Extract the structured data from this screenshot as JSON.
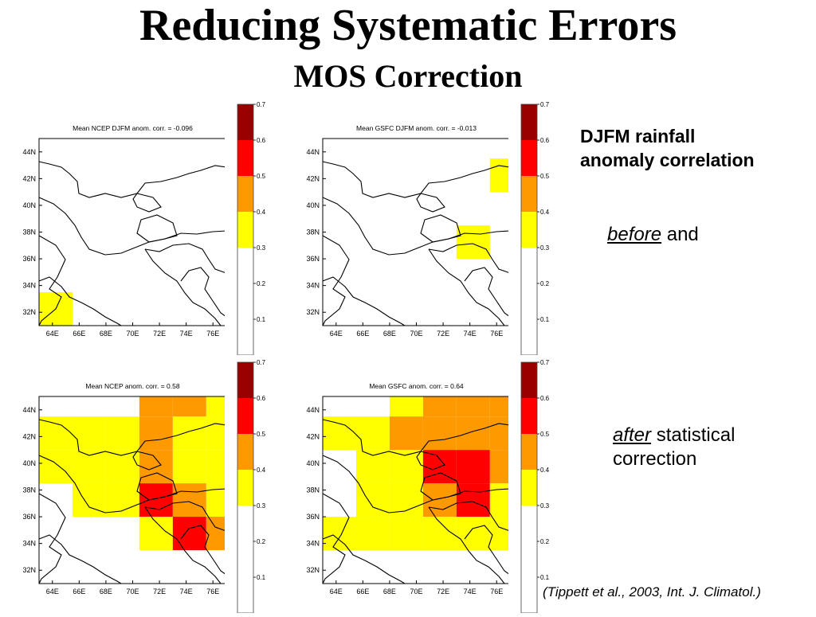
{
  "slide": {
    "title": "Reducing Systematic Errors",
    "subtitle": "MOS Correction",
    "side_heading_line1": "DJFM rainfall",
    "side_heading_line2": "anomaly correlation",
    "before_word": "before",
    "before_rest": " and",
    "after_word": "after",
    "after_rest": " statistical",
    "after_line2": "correction",
    "citation": "(Tippett et al., 2003, Int. J. Climatol.)"
  },
  "chart_data": [
    {
      "type": "heatmap",
      "title": "Mean NCEP DJFM anom. corr. = -0.096",
      "xlabels": [
        "64E",
        "66E",
        "68E",
        "70E",
        "72E",
        "74E",
        "76E"
      ],
      "ylabels": [
        "44N",
        "42N",
        "40N",
        "38N",
        "36N",
        "34N",
        "32N"
      ],
      "grid_origin": {
        "lon": 63,
        "lat": 31
      },
      "grid_step_deg": 2.5,
      "cells": [
        {
          "lon": 63,
          "lat": 31,
          "v": 0.35
        }
      ]
    },
    {
      "type": "heatmap",
      "title": "Mean GSFC DJFM anom. corr. = -0.013",
      "xlabels": [
        "64E",
        "66E",
        "68E",
        "70E",
        "72E",
        "74E",
        "76E"
      ],
      "ylabels": [
        "44N",
        "42N",
        "40N",
        "38N",
        "36N",
        "34N",
        "32N"
      ],
      "grid_origin": {
        "lon": 63,
        "lat": 31
      },
      "grid_step_deg": 2.5,
      "cells": [
        {
          "lon": 75.5,
          "lat": 41,
          "v": 0.35
        },
        {
          "lon": 73,
          "lat": 36,
          "v": 0.35
        }
      ]
    },
    {
      "type": "heatmap",
      "title": "Mean NCEP anom. corr. = 0.58",
      "xlabels": [
        "64E",
        "66E",
        "68E",
        "70E",
        "72E",
        "74E",
        "76E"
      ],
      "ylabels": [
        "44N",
        "42N",
        "40N",
        "38N",
        "36N",
        "34N",
        "32N"
      ],
      "grid_origin": {
        "lon": 63,
        "lat": 31
      },
      "grid_step_deg": 2.5,
      "cells": [
        {
          "lon": 70.5,
          "lat": 43.5,
          "v": 0.45
        },
        {
          "lon": 73,
          "lat": 43.5,
          "v": 0.45
        },
        {
          "lon": 75.5,
          "lat": 43.5,
          "v": 0.35
        },
        {
          "lon": 63,
          "lat": 41,
          "v": 0.35
        },
        {
          "lon": 65.5,
          "lat": 41,
          "v": 0.35
        },
        {
          "lon": 68,
          "lat": 41,
          "v": 0.35
        },
        {
          "lon": 70.5,
          "lat": 41,
          "v": 0.45
        },
        {
          "lon": 73,
          "lat": 41,
          "v": 0.35
        },
        {
          "lon": 75.5,
          "lat": 41,
          "v": 0.35
        },
        {
          "lon": 63,
          "lat": 38.5,
          "v": 0.35
        },
        {
          "lon": 65.5,
          "lat": 38.5,
          "v": 0.35
        },
        {
          "lon": 68,
          "lat": 38.5,
          "v": 0.35
        },
        {
          "lon": 70.5,
          "lat": 38.5,
          "v": 0.45
        },
        {
          "lon": 73,
          "lat": 38.5,
          "v": 0.35
        },
        {
          "lon": 75.5,
          "lat": 38.5,
          "v": 0.35
        },
        {
          "lon": 65.5,
          "lat": 36,
          "v": 0.35
        },
        {
          "lon": 68,
          "lat": 36,
          "v": 0.35
        },
        {
          "lon": 70.5,
          "lat": 36,
          "v": 0.55
        },
        {
          "lon": 73,
          "lat": 36,
          "v": 0.45
        },
        {
          "lon": 75.5,
          "lat": 36,
          "v": 0.35
        },
        {
          "lon": 70.5,
          "lat": 33.5,
          "v": 0.35
        },
        {
          "lon": 73,
          "lat": 33.5,
          "v": 0.55
        },
        {
          "lon": 75.5,
          "lat": 33.5,
          "v": 0.45
        }
      ]
    },
    {
      "type": "heatmap",
      "title": "Mean GSFC anom. corr. = 0.64",
      "xlabels": [
        "64E",
        "66E",
        "68E",
        "70E",
        "72E",
        "74E",
        "76E"
      ],
      "ylabels": [
        "44N",
        "42N",
        "40N",
        "38N",
        "36N",
        "34N",
        "32N"
      ],
      "grid_origin": {
        "lon": 63,
        "lat": 31
      },
      "grid_step_deg": 2.5,
      "cells": [
        {
          "lon": 68,
          "lat": 43.5,
          "v": 0.35
        },
        {
          "lon": 70.5,
          "lat": 43.5,
          "v": 0.45
        },
        {
          "lon": 73,
          "lat": 43.5,
          "v": 0.45
        },
        {
          "lon": 75.5,
          "lat": 43.5,
          "v": 0.45
        },
        {
          "lon": 63,
          "lat": 41,
          "v": 0.35
        },
        {
          "lon": 65.5,
          "lat": 41,
          "v": 0.35
        },
        {
          "lon": 68,
          "lat": 41,
          "v": 0.45
        },
        {
          "lon": 70.5,
          "lat": 41,
          "v": 0.45
        },
        {
          "lon": 73,
          "lat": 41,
          "v": 0.45
        },
        {
          "lon": 75.5,
          "lat": 41,
          "v": 0.45
        },
        {
          "lon": 65.5,
          "lat": 38.5,
          "v": 0.35
        },
        {
          "lon": 68,
          "lat": 38.5,
          "v": 0.35
        },
        {
          "lon": 70.5,
          "lat": 38.5,
          "v": 0.55
        },
        {
          "lon": 73,
          "lat": 38.5,
          "v": 0.55
        },
        {
          "lon": 75.5,
          "lat": 38.5,
          "v": 0.45
        },
        {
          "lon": 65.5,
          "lat": 36,
          "v": 0.35
        },
        {
          "lon": 68,
          "lat": 36,
          "v": 0.35
        },
        {
          "lon": 70.5,
          "lat": 36,
          "v": 0.45
        },
        {
          "lon": 73,
          "lat": 36,
          "v": 0.55
        },
        {
          "lon": 75.5,
          "lat": 36,
          "v": 0.35
        },
        {
          "lon": 63,
          "lat": 33.5,
          "v": 0.35
        },
        {
          "lon": 65.5,
          "lat": 33.5,
          "v": 0.35
        },
        {
          "lon": 68,
          "lat": 33.5,
          "v": 0.35
        },
        {
          "lon": 70.5,
          "lat": 33.5,
          "v": 0.35
        },
        {
          "lon": 73,
          "lat": 33.5,
          "v": 0.35
        },
        {
          "lon": 75.5,
          "lat": 33.5,
          "v": 0.35
        }
      ]
    }
  ],
  "colorbar": {
    "ticks": [
      "0.1",
      "0.2",
      "0.3",
      "0.4",
      "0.5",
      "0.6",
      "0.7"
    ],
    "range": [
      0,
      0.7
    ],
    "bins": [
      {
        "min": 0.0,
        "max": 0.3,
        "color": "#ffffff"
      },
      {
        "min": 0.3,
        "max": 0.4,
        "color": "#ffff00"
      },
      {
        "min": 0.4,
        "max": 0.5,
        "color": "#ff9900"
      },
      {
        "min": 0.5,
        "max": 0.6,
        "color": "#ff0000"
      },
      {
        "min": 0.6,
        "max": 0.7,
        "color": "#990000"
      }
    ]
  }
}
